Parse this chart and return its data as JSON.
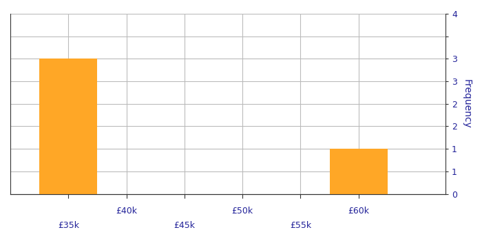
{
  "bin_edges": [
    32500,
    37500,
    42500,
    47500,
    52500,
    57500,
    62500,
    67500
  ],
  "frequencies": [
    3,
    0,
    0,
    0,
    0,
    1,
    0
  ],
  "bar_color": "#FFA726",
  "ylim": [
    0,
    4
  ],
  "right_yticks": [
    0,
    0.5,
    1,
    1.5,
    2,
    2.5,
    3,
    3.5,
    4
  ],
  "right_yticklabels": [
    "0",
    "1",
    "1",
    "2",
    "2",
    "3",
    "3",
    "",
    "4"
  ],
  "xlim_left": 30000,
  "xlim_right": 67500,
  "xtick_major": [
    40000,
    50000,
    60000
  ],
  "xtick_major_labels": [
    "£40k",
    "£50k",
    "£60k"
  ],
  "xtick_minor": [
    35000,
    45000,
    55000
  ],
  "xtick_minor_labels": [
    "£35k",
    "£45k",
    "£55k"
  ],
  "ylabel": "Frequency",
  "background_color": "#ffffff",
  "grid_color": "#bbbbbb",
  "spine_color": "#333333"
}
